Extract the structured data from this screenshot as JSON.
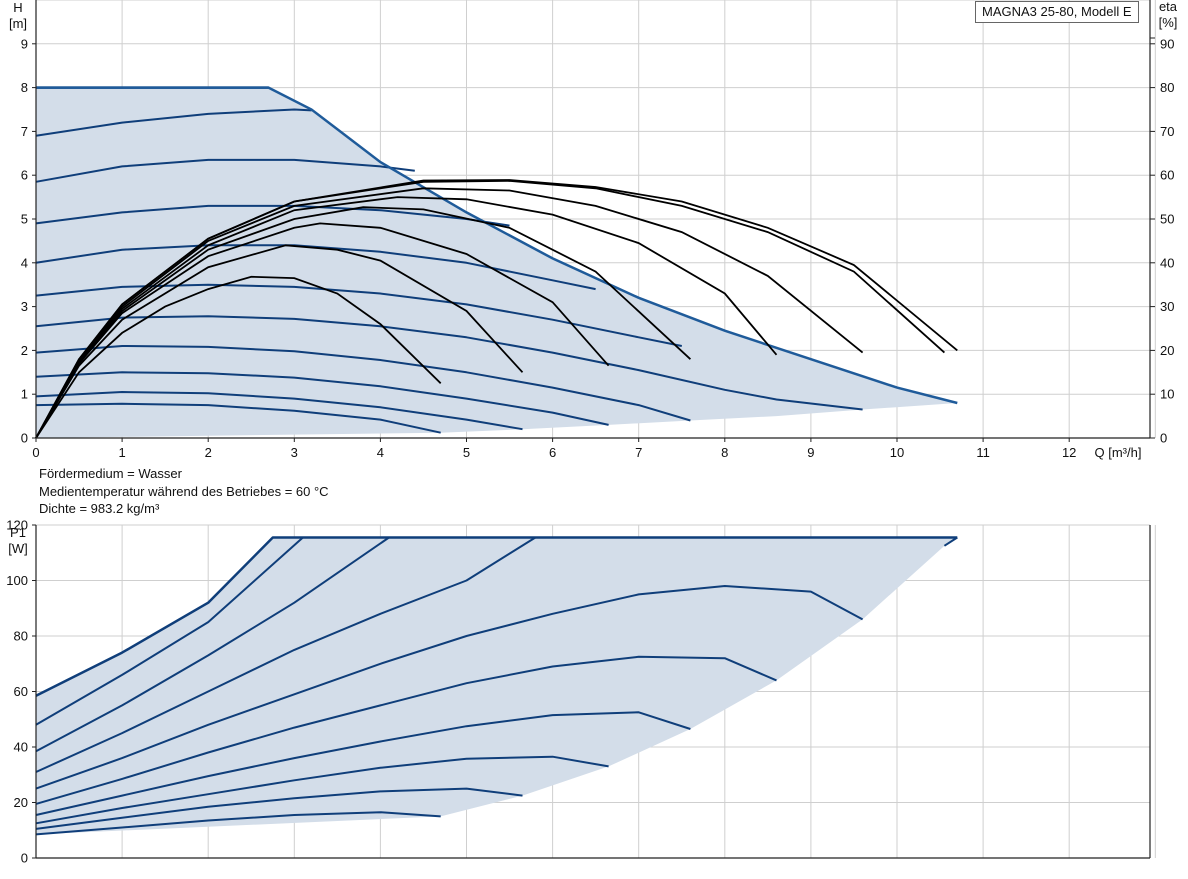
{
  "model_label": "MAGNA3 25-80, Modell E",
  "notes": {
    "medium": "Fördermedium = Wasser",
    "temperature": "Medientemperatur während des Betriebes = 60 °C",
    "density": "Dichte = 983.2 kg/m³"
  },
  "colors": {
    "curve": "#0f3e7a",
    "envelope": "#1f5b9a",
    "fill": "#d3dde9",
    "eta": "#000000",
    "grid": "#cfcfcf",
    "axis": "#222222"
  },
  "chart_data": [
    {
      "id": "head",
      "type": "line",
      "x_unit_label": "Q [m³/h]",
      "y_label_lines": [
        "H",
        "[m]"
      ],
      "y2_label_lines": [
        "eta",
        "[%]"
      ],
      "xlim": [
        0,
        13
      ],
      "ylim": [
        0,
        10
      ],
      "y2lim": [
        0,
        100
      ],
      "x_ticks": [
        "0",
        "1",
        "2",
        "3",
        "4",
        "5",
        "6",
        "7",
        "8",
        "9",
        "10",
        "11",
        "12"
      ],
      "y_ticks": [
        "0",
        "1",
        "2",
        "3",
        "4",
        "5",
        "6",
        "7",
        "8",
        "9"
      ],
      "y2_ticks": [
        "0",
        "10",
        "20",
        "30",
        "40",
        "50",
        "60",
        "70",
        "80",
        "90"
      ],
      "grid": true,
      "envelope": [
        [
          0,
          8
        ],
        [
          2.7,
          8
        ],
        [
          3.2,
          7.5
        ],
        [
          4,
          6.3
        ],
        [
          5,
          5.15
        ],
        [
          6,
          4.1
        ],
        [
          7,
          3.2
        ],
        [
          8,
          2.45
        ],
        [
          9,
          1.8
        ],
        [
          10,
          1.15
        ],
        [
          10.7,
          0.8
        ],
        [
          9.6,
          0.65
        ],
        [
          8.6,
          0.5
        ],
        [
          7.6,
          0.4
        ],
        [
          6.65,
          0.3
        ],
        [
          5.65,
          0.2
        ],
        [
          4.7,
          0.12
        ],
        [
          0,
          0
        ]
      ],
      "speed_curves": [
        [
          [
            0,
            8
          ],
          [
            2.7,
            8
          ]
        ],
        [
          [
            0,
            6.9
          ],
          [
            1,
            7.2
          ],
          [
            2,
            7.4
          ],
          [
            3,
            7.5
          ],
          [
            3.2,
            7.48
          ]
        ],
        [
          [
            0,
            5.85
          ],
          [
            1,
            6.2
          ],
          [
            2,
            6.35
          ],
          [
            3,
            6.35
          ],
          [
            4,
            6.2
          ],
          [
            4.4,
            6.1
          ]
        ],
        [
          [
            0,
            4.9
          ],
          [
            1,
            5.15
          ],
          [
            2,
            5.3
          ],
          [
            3,
            5.3
          ],
          [
            4,
            5.2
          ],
          [
            5,
            5.0
          ],
          [
            5.5,
            4.85
          ]
        ],
        [
          [
            0,
            4.0
          ],
          [
            1,
            4.3
          ],
          [
            2,
            4.4
          ],
          [
            3,
            4.4
          ],
          [
            4,
            4.25
          ],
          [
            5,
            4.0
          ],
          [
            6,
            3.6
          ],
          [
            6.5,
            3.4
          ]
        ],
        [
          [
            0,
            3.25
          ],
          [
            1,
            3.45
          ],
          [
            2,
            3.5
          ],
          [
            3,
            3.45
          ],
          [
            4,
            3.3
          ],
          [
            5,
            3.05
          ],
          [
            6,
            2.7
          ],
          [
            7,
            2.3
          ],
          [
            7.5,
            2.1
          ]
        ],
        [
          [
            0,
            2.55
          ],
          [
            1,
            2.75
          ],
          [
            2,
            2.78
          ],
          [
            3,
            2.72
          ],
          [
            4,
            2.55
          ],
          [
            5,
            2.3
          ],
          [
            6,
            1.95
          ],
          [
            7,
            1.55
          ],
          [
            8,
            1.1
          ],
          [
            8.6,
            0.88
          ],
          [
            9.6,
            0.65
          ]
        ],
        [
          [
            0,
            1.95
          ],
          [
            1,
            2.1
          ],
          [
            2,
            2.08
          ],
          [
            3,
            1.98
          ],
          [
            4,
            1.78
          ],
          [
            5,
            1.5
          ],
          [
            6,
            1.15
          ],
          [
            7,
            0.75
          ],
          [
            7.6,
            0.4
          ]
        ],
        [
          [
            0,
            1.4
          ],
          [
            1,
            1.5
          ],
          [
            2,
            1.48
          ],
          [
            3,
            1.38
          ],
          [
            4,
            1.18
          ],
          [
            5,
            0.9
          ],
          [
            6,
            0.58
          ],
          [
            6.65,
            0.3
          ]
        ],
        [
          [
            0,
            0.95
          ],
          [
            1,
            1.05
          ],
          [
            2,
            1.02
          ],
          [
            3,
            0.9
          ],
          [
            4,
            0.7
          ],
          [
            5,
            0.42
          ],
          [
            5.65,
            0.2
          ]
        ],
        [
          [
            0,
            0.75
          ],
          [
            1,
            0.78
          ],
          [
            2,
            0.75
          ],
          [
            3,
            0.62
          ],
          [
            4,
            0.42
          ],
          [
            4.7,
            0.12
          ]
        ]
      ],
      "eta_curves": [
        [
          [
            0,
            0
          ],
          [
            0.5,
            15
          ],
          [
            1,
            24
          ],
          [
            1.5,
            30
          ],
          [
            2,
            34
          ],
          [
            2.5,
            36.8
          ],
          [
            3,
            36.5
          ],
          [
            3.5,
            33
          ],
          [
            4,
            26
          ],
          [
            4.7,
            12.5
          ]
        ],
        [
          [
            0,
            0
          ],
          [
            0.5,
            16.5
          ],
          [
            1,
            27
          ],
          [
            2,
            39
          ],
          [
            2.9,
            44
          ],
          [
            3.5,
            43
          ],
          [
            4,
            40.5
          ],
          [
            5,
            29
          ],
          [
            5.65,
            15
          ]
        ],
        [
          [
            0,
            0
          ],
          [
            0.5,
            17
          ],
          [
            1,
            28.5
          ],
          [
            2,
            41.5
          ],
          [
            3,
            48
          ],
          [
            3.3,
            49
          ],
          [
            4,
            48
          ],
          [
            5,
            42
          ],
          [
            6,
            31
          ],
          [
            6.65,
            16.5
          ]
        ],
        [
          [
            0,
            0
          ],
          [
            0.5,
            17.5
          ],
          [
            1,
            29
          ],
          [
            2,
            43
          ],
          [
            3,
            50
          ],
          [
            3.8,
            52.7
          ],
          [
            4.5,
            52.2
          ],
          [
            5.5,
            48
          ],
          [
            6.5,
            38
          ],
          [
            7.6,
            18
          ]
        ],
        [
          [
            0,
            0
          ],
          [
            0.5,
            17.5
          ],
          [
            1,
            29.5
          ],
          [
            2,
            44
          ],
          [
            3,
            52
          ],
          [
            4.2,
            55
          ],
          [
            5,
            54.5
          ],
          [
            6,
            51
          ],
          [
            7,
            44.5
          ],
          [
            8,
            33
          ],
          [
            8.6,
            19
          ]
        ],
        [
          [
            0,
            0
          ],
          [
            0.5,
            17.8
          ],
          [
            1,
            30
          ],
          [
            2,
            45
          ],
          [
            3,
            53
          ],
          [
            4.5,
            57
          ],
          [
            5.5,
            56.5
          ],
          [
            6.5,
            53
          ],
          [
            7.5,
            47
          ],
          [
            8.5,
            37
          ],
          [
            9.6,
            19.5
          ]
        ],
        [
          [
            0,
            0
          ],
          [
            0.5,
            18
          ],
          [
            1,
            30.5
          ],
          [
            2,
            45.5
          ],
          [
            3,
            54
          ],
          [
            4.5,
            58.5
          ],
          [
            5.5,
            58.7
          ],
          [
            6.5,
            57
          ],
          [
            7.5,
            53
          ],
          [
            8.5,
            47
          ],
          [
            9.5,
            38
          ],
          [
            10.55,
            19.5
          ]
        ],
        [
          [
            0,
            0
          ],
          [
            0.5,
            18
          ],
          [
            1,
            30.5
          ],
          [
            2,
            45.5
          ],
          [
            3,
            54
          ],
          [
            4.5,
            58.8
          ],
          [
            5.5,
            58.9
          ],
          [
            6.5,
            57.3
          ],
          [
            7.5,
            54
          ],
          [
            8.5,
            48
          ],
          [
            9.5,
            39.5
          ],
          [
            10.7,
            20
          ]
        ]
      ]
    },
    {
      "id": "power",
      "type": "line",
      "x_unit_label": "",
      "y_label_lines": [
        "P1",
        "[W]"
      ],
      "xlim": [
        0,
        13
      ],
      "ylim": [
        0,
        120
      ],
      "y_ticks": [
        "0",
        "20",
        "40",
        "60",
        "80",
        "100",
        "120"
      ],
      "y_tick_values": [
        0,
        20,
        40,
        60,
        80,
        100,
        120
      ],
      "grid": true,
      "envelope": [
        [
          0,
          58.5
        ],
        [
          1,
          74
        ],
        [
          2,
          92
        ],
        [
          2.75,
          115.5
        ],
        [
          10.7,
          115.5
        ],
        [
          10.55,
          112.5
        ],
        [
          9.6,
          86
        ],
        [
          8.6,
          64
        ],
        [
          7.6,
          46.5
        ],
        [
          6.65,
          33
        ],
        [
          5.65,
          22.5
        ],
        [
          4.7,
          15
        ],
        [
          0,
          8.5
        ]
      ],
      "speed_curves": [
        [
          [
            0,
            58.5
          ],
          [
            1,
            74
          ],
          [
            2,
            92
          ],
          [
            2.75,
            115.5
          ],
          [
            10.7,
            115.5
          ]
        ],
        [
          [
            0,
            48
          ],
          [
            1,
            66
          ],
          [
            2,
            85
          ],
          [
            3.1,
            115.5
          ]
        ],
        [
          [
            0,
            38.5
          ],
          [
            1,
            55
          ],
          [
            2,
            73
          ],
          [
            3,
            92
          ],
          [
            4.1,
            115.5
          ]
        ],
        [
          [
            0,
            31
          ],
          [
            1,
            45
          ],
          [
            2,
            60
          ],
          [
            3,
            75
          ],
          [
            4,
            88
          ],
          [
            5,
            100
          ],
          [
            5.8,
            115.5
          ]
        ],
        [
          [
            0,
            25
          ],
          [
            1,
            36
          ],
          [
            2,
            48
          ],
          [
            3,
            59
          ],
          [
            4,
            70
          ],
          [
            5,
            80
          ],
          [
            6,
            88
          ],
          [
            7,
            95
          ],
          [
            8,
            98
          ],
          [
            9,
            96
          ],
          [
            9.6,
            86
          ]
        ],
        [
          [
            0,
            19.5
          ],
          [
            1,
            28.5
          ],
          [
            2,
            38
          ],
          [
            3,
            47
          ],
          [
            4,
            55
          ],
          [
            5,
            63
          ],
          [
            6,
            69
          ],
          [
            7,
            72.5
          ],
          [
            8,
            72
          ],
          [
            8.6,
            64
          ]
        ],
        [
          [
            0,
            15.5
          ],
          [
            1,
            22.5
          ],
          [
            2,
            29.5
          ],
          [
            3,
            36
          ],
          [
            4,
            42
          ],
          [
            5,
            47.5
          ],
          [
            6,
            51.5
          ],
          [
            7,
            52.5
          ],
          [
            7.6,
            46.5
          ]
        ],
        [
          [
            0,
            12.5
          ],
          [
            1,
            18
          ],
          [
            2,
            23
          ],
          [
            3,
            28
          ],
          [
            4,
            32.5
          ],
          [
            5,
            35.8
          ],
          [
            6,
            36.5
          ],
          [
            6.65,
            33
          ]
        ],
        [
          [
            0,
            10.5
          ],
          [
            1,
            14.5
          ],
          [
            2,
            18.5
          ],
          [
            3,
            21.5
          ],
          [
            4,
            24
          ],
          [
            5,
            25
          ],
          [
            5.65,
            22.5
          ]
        ],
        [
          [
            0,
            8.5
          ],
          [
            1,
            11
          ],
          [
            2,
            13.5
          ],
          [
            3,
            15.5
          ],
          [
            4,
            16.5
          ],
          [
            4.7,
            15
          ]
        ],
        [
          [
            10.7,
            115.5
          ],
          [
            10.55,
            112.5
          ]
        ]
      ]
    }
  ]
}
